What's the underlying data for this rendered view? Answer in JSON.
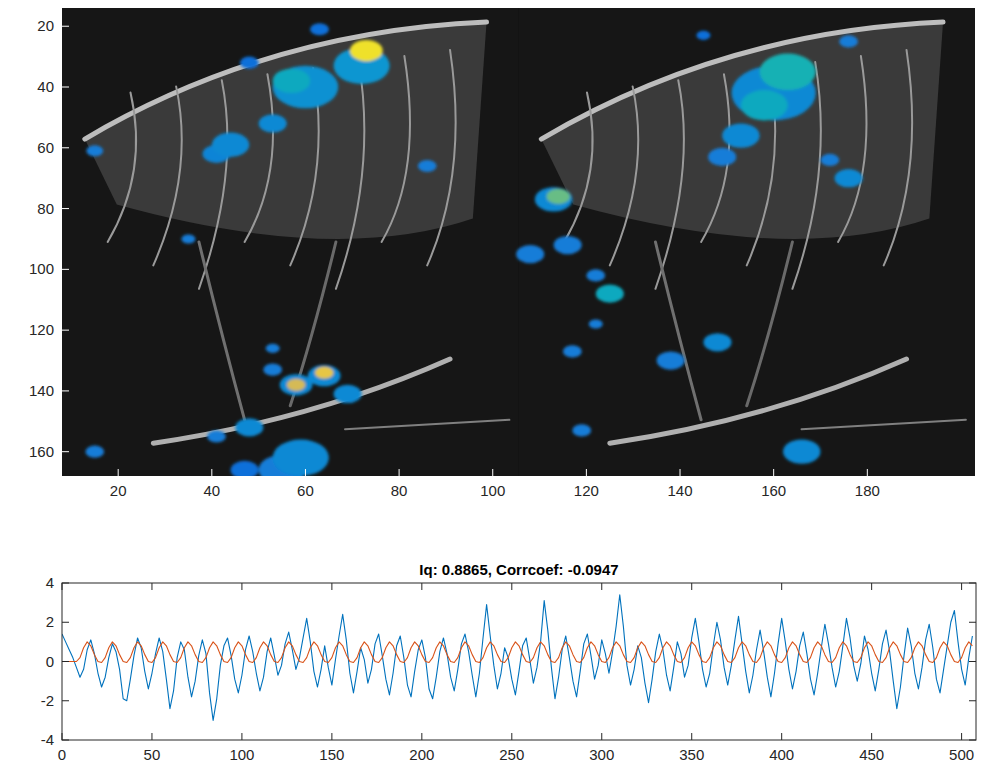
{
  "chart_data": [
    {
      "type": "image",
      "xlim": [
        8,
        203
      ],
      "ylim": [
        168,
        14
      ],
      "xticks": [
        20,
        40,
        60,
        80,
        100,
        120,
        140,
        160,
        180
      ],
      "yticks": [
        20,
        40,
        60,
        80,
        100,
        120,
        140,
        160
      ],
      "clim": [
        0,
        1
      ],
      "blobs": {
        "x": [
          48,
          63,
          15,
          35,
          86,
          44,
          53,
          41,
          60,
          57,
          72,
          73,
          53,
          53,
          58,
          64,
          58,
          64,
          69,
          48,
          41,
          59,
          55,
          47,
          15,
          160,
          163,
          158,
          153,
          149,
          176,
          145,
          176,
          172,
          113,
          114,
          108,
          116,
          125,
          122,
          122,
          117,
          138,
          148,
          119,
          166
        ],
        "y": [
          32,
          21,
          61,
          90,
          66,
          59,
          52,
          62,
          40,
          38,
          33,
          28,
          126,
          133,
          138,
          135,
          138,
          134,
          141,
          152,
          155,
          162,
          166,
          166,
          160,
          42,
          35,
          46,
          56,
          63,
          25,
          23,
          70,
          64,
          77,
          76,
          95,
          92,
          108,
          102,
          118,
          127,
          130,
          124,
          153,
          160
        ],
        "size": [
          2,
          2,
          1.8,
          1.5,
          2,
          4,
          3,
          3,
          7,
          4,
          6,
          3.5,
          1.5,
          2,
          3.5,
          3.5,
          2,
          2,
          3,
          3,
          2,
          6,
          5,
          3,
          2,
          9,
          6,
          5,
          4,
          3,
          2,
          1.5,
          3,
          2,
          4,
          2.5,
          3,
          3,
          3,
          2,
          1.5,
          2,
          3,
          3,
          2,
          4
        ],
        "values": [
          0.2,
          0.2,
          0.25,
          0.25,
          0.25,
          0.3,
          0.3,
          0.28,
          0.33,
          0.45,
          0.35,
          0.95,
          0.25,
          0.25,
          0.3,
          0.3,
          0.85,
          0.9,
          0.3,
          0.3,
          0.25,
          0.3,
          0.25,
          0.2,
          0.25,
          0.3,
          0.5,
          0.45,
          0.3,
          0.25,
          0.25,
          0.2,
          0.3,
          0.25,
          0.3,
          0.65,
          0.25,
          0.25,
          0.45,
          0.25,
          0.25,
          0.25,
          0.25,
          0.3,
          0.25,
          0.3
        ]
      }
    },
    {
      "type": "line",
      "title": "Iq: 0.8865, Corrcoef: -0.0947",
      "xlim": [
        0,
        508
      ],
      "ylim": [
        -4,
        4
      ],
      "xticks": [
        0,
        50,
        100,
        150,
        200,
        250,
        300,
        350,
        400,
        450,
        500
      ],
      "yticks": [
        -4,
        -2,
        0,
        2,
        4
      ],
      "x": [
        0,
        2,
        4,
        6,
        8,
        10,
        12,
        14,
        16,
        18,
        20,
        22,
        24,
        26,
        28,
        30,
        32,
        34,
        36,
        38,
        40,
        42,
        44,
        46,
        48,
        50,
        52,
        54,
        56,
        58,
        60,
        62,
        64,
        66,
        68,
        70,
        72,
        74,
        76,
        78,
        80,
        82,
        84,
        86,
        88,
        90,
        92,
        94,
        96,
        98,
        100,
        102,
        104,
        106,
        108,
        110,
        112,
        114,
        116,
        118,
        120,
        122,
        124,
        126,
        128,
        130,
        132,
        134,
        136,
        138,
        140,
        142,
        144,
        146,
        148,
        150,
        152,
        154,
        156,
        158,
        160,
        162,
        164,
        166,
        168,
        170,
        172,
        174,
        176,
        178,
        180,
        182,
        184,
        186,
        188,
        190,
        192,
        194,
        196,
        198,
        200,
        202,
        204,
        206,
        208,
        210,
        212,
        214,
        216,
        218,
        220,
        222,
        224,
        226,
        228,
        230,
        232,
        234,
        236,
        238,
        240,
        242,
        244,
        246,
        248,
        250,
        252,
        254,
        256,
        258,
        260,
        262,
        264,
        266,
        268,
        270,
        272,
        274,
        276,
        278,
        280,
        282,
        284,
        286,
        288,
        290,
        292,
        294,
        296,
        298,
        300,
        302,
        304,
        306,
        308,
        310,
        312,
        314,
        316,
        318,
        320,
        322,
        324,
        326,
        328,
        330,
        332,
        334,
        336,
        338,
        340,
        342,
        344,
        346,
        348,
        350,
        352,
        354,
        356,
        358,
        360,
        362,
        364,
        366,
        368,
        370,
        372,
        374,
        376,
        378,
        380,
        382,
        384,
        386,
        388,
        390,
        392,
        394,
        396,
        398,
        400,
        402,
        404,
        406,
        408,
        410,
        412,
        414,
        416,
        418,
        420,
        422,
        424,
        426,
        428,
        430,
        432,
        434,
        436,
        438,
        440,
        442,
        444,
        446,
        448,
        450,
        452,
        454,
        456,
        458,
        460,
        462,
        464,
        466,
        468,
        470,
        472,
        474,
        476,
        478,
        480,
        482,
        484,
        486,
        488,
        490,
        492,
        494,
        496,
        498,
        500,
        502,
        504,
        506
      ],
      "series": [
        {
          "color": "#0072bd",
          "values": [
            1.4,
            1.0,
            0.6,
            0.2,
            -0.3,
            -0.8,
            -0.4,
            0.6,
            1.1,
            0.4,
            -0.6,
            -1.3,
            -0.8,
            0.2,
            0.9,
            0.5,
            -0.4,
            -1.9,
            -2.0,
            -0.9,
            0.3,
            1.2,
            0.7,
            -0.5,
            -1.4,
            -0.6,
            0.4,
            1.2,
            0.5,
            -0.9,
            -2.4,
            -1.5,
            0.2,
            1.0,
            0.6,
            -0.8,
            -1.8,
            -1.0,
            0.3,
            1.1,
            0.4,
            -1.6,
            -3.0,
            -1.9,
            -0.2,
            0.8,
            1.2,
            0.3,
            -0.9,
            -1.6,
            -0.7,
            0.6,
            1.3,
            0.5,
            -0.6,
            -1.5,
            -0.8,
            0.5,
            1.2,
            0.3,
            -0.7,
            -0.2,
            0.9,
            1.5,
            0.6,
            -0.4,
            0.2,
            1.2,
            2.2,
            1.0,
            -0.5,
            -1.3,
            -0.4,
            0.8,
            -0.3,
            -1.2,
            0.1,
            1.3,
            2.4,
            1.1,
            -0.6,
            -1.6,
            -0.5,
            0.7,
            0.1,
            -1.1,
            -0.4,
            0.9,
            1.4,
            0.3,
            -0.9,
            -1.7,
            -0.6,
            0.8,
            1.3,
            0.2,
            -1.2,
            -1.8,
            -0.5,
            0.6,
            1.1,
            0.2,
            -1.4,
            -1.9,
            -0.8,
            0.5,
            1.2,
            0.4,
            -0.8,
            -1.5,
            -0.4,
            0.9,
            1.4,
            0.5,
            -0.7,
            -1.8,
            -0.6,
            1.2,
            2.9,
            1.3,
            -0.2,
            -1.4,
            -0.6,
            0.7,
            0.2,
            -0.9,
            -1.7,
            -0.5,
            0.8,
            1.2,
            0.1,
            -1.1,
            -0.3,
            1.0,
            3.1,
            1.6,
            -0.3,
            -1.9,
            -0.8,
            0.6,
            1.3,
            0.2,
            -1.0,
            -1.8,
            -0.5,
            0.9,
            1.4,
            0.3,
            -0.9,
            -0.2,
            1.1,
            0.4,
            -0.6,
            0.5,
            1.8,
            3.4,
            1.8,
            -0.2,
            -1.2,
            -0.4,
            0.8,
            0.2,
            -1.1,
            -2.1,
            -0.9,
            0.5,
            1.4,
            0.6,
            -0.7,
            -1.5,
            -0.3,
            1.0,
            0.4,
            -0.8,
            -0.2,
            1.2,
            2.2,
            1.0,
            -0.4,
            -1.3,
            -0.6,
            0.8,
            2.0,
            1.1,
            -0.3,
            -1.2,
            -0.2,
            1.1,
            2.3,
            0.9,
            -0.5,
            -1.6,
            -0.7,
            0.6,
            1.6,
            0.5,
            -0.8,
            -1.8,
            -0.6,
            0.9,
            2.2,
            1.0,
            -0.4,
            -1.4,
            -0.5,
            0.8,
            1.5,
            0.4,
            -0.9,
            -1.7,
            -0.6,
            0.7,
            1.9,
            0.9,
            -0.3,
            -1.3,
            -0.5,
            0.8,
            2.2,
            1.2,
            -0.2,
            -1.0,
            -0.1,
            1.3,
            0.6,
            -0.6,
            -1.5,
            -0.4,
            0.9,
            1.6,
            0.5,
            -1.0,
            -2.4,
            -1.3,
            0.3,
            1.7,
            0.8,
            -0.6,
            -1.4,
            -0.3,
            1.1,
            1.9,
            0.7,
            -0.9,
            -1.6,
            -0.4,
            0.8,
            2.0,
            2.6,
            1.0,
            -0.4,
            -1.2,
            0.2,
            1.3
          ]
        },
        {
          "color": "#d95319",
          "values": [
            0,
            0,
            0,
            0,
            0,
            0.2,
            0.7,
            1,
            0.8,
            0.35,
            0,
            -0.05,
            0.2,
            0.7,
            1,
            0.8,
            0.35,
            0,
            -0.05,
            0.2,
            0.7,
            1,
            0.8,
            0.35,
            0,
            -0.05,
            0.2,
            0.7,
            1,
            0.8,
            0.35,
            0,
            -0.05,
            0.2,
            0.7,
            1,
            0.8,
            0.35,
            0,
            -0.05,
            0.2,
            0.7,
            1,
            0.8,
            0.35,
            0,
            -0.05,
            0.2,
            0.7,
            1,
            0.8,
            0.35,
            0,
            -0.05,
            0.2,
            0.7,
            1,
            0.8,
            0.35,
            0,
            -0.05,
            0.2,
            0.7,
            1,
            0.8,
            0.35,
            0,
            -0.05,
            0.2,
            0.7,
            1,
            0.8,
            0.35,
            0,
            -0.05,
            0.2,
            0.7,
            1,
            0.8,
            0.35,
            0,
            -0.05,
            0.2,
            0.7,
            1,
            0.8,
            0.35,
            0,
            -0.05,
            0.2,
            0.7,
            1,
            0.8,
            0.35,
            0,
            -0.05,
            0.2,
            0.7,
            1,
            0.8,
            0.35,
            0,
            -0.05,
            0.2,
            0.7,
            1,
            0.8,
            0.35,
            0,
            -0.05,
            0.2,
            0.7,
            1,
            0.8,
            0.35,
            0,
            -0.05,
            0.2,
            0.7,
            1,
            0.8,
            0.35,
            0,
            -0.05,
            0.2,
            0.7,
            1,
            0.8,
            0.35,
            0,
            -0.05,
            0.2,
            0.7,
            1,
            0.8,
            0.35,
            0,
            -0.05,
            0.2,
            0.7,
            1,
            0.8,
            0.35,
            0,
            -0.05,
            0.2,
            0.7,
            1,
            0.8,
            0.35,
            0,
            -0.05,
            0.2,
            0.7,
            1,
            0.8,
            0.35,
            0,
            -0.05,
            0.2,
            0.7,
            1,
            0.8,
            0.35,
            0,
            -0.05,
            0.2,
            0.7,
            1,
            0.8,
            0.35,
            0,
            -0.05,
            0.2,
            0.7,
            1,
            0.8,
            0.35,
            0,
            -0.05,
            0.2,
            0.7,
            1,
            0.8,
            0.35,
            0,
            -0.05,
            0.2,
            0.7,
            1,
            0.8,
            0.35,
            0,
            -0.05,
            0.2,
            0.7,
            1,
            0.8,
            0.35,
            0,
            -0.05,
            0.2,
            0.7,
            1,
            0.8,
            0.35,
            0,
            -0.05,
            0.2,
            0.7,
            1,
            0.8,
            0.35,
            0,
            -0.05,
            0.2,
            0.7,
            1,
            0.8,
            0.35,
            0,
            -0.05,
            0.2,
            0.7,
            1,
            0.8,
            0.35,
            0,
            -0.05,
            0.2,
            0.7,
            1,
            0.8,
            0.35,
            0,
            -0.05,
            0.2,
            0.7,
            1,
            0.8,
            0.35,
            0,
            -0.05,
            0.2,
            0.7,
            1,
            0.8,
            0.35,
            0,
            -0.05,
            0.2,
            0.7,
            1,
            0.8
          ]
        }
      ]
    }
  ]
}
